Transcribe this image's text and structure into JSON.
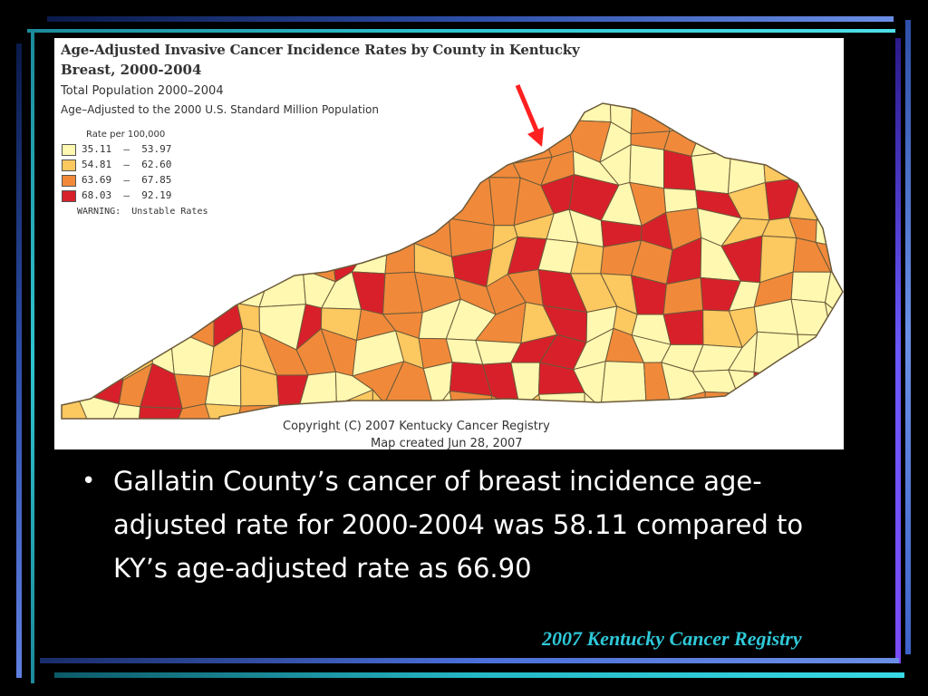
{
  "map": {
    "title": "Age-Adjusted Invasive Cancer Incidence Rates by County in Kentucky",
    "subtitle": "Breast, 2000-2004",
    "population_line": "Total Population 2000–2004",
    "adjusted_line": "Age–Adjusted to the 2000 U.S. Standard Million Population",
    "legend": {
      "title": "Rate per 100,000",
      "items": [
        {
          "label": "35.11  –  53.97",
          "color": "#fff8b0"
        },
        {
          "label": "54.81  –  62.60",
          "color": "#fcc860"
        },
        {
          "label": "63.69  –  67.85",
          "color": "#f08a3a"
        },
        {
          "label": "68.03  –  92.19",
          "color": "#d8202a"
        }
      ],
      "warning": "WARNING:  Unstable Rates"
    },
    "copyright": "Copyright (C) 2007 Kentucky Cancer Registry",
    "created": "Map created Jun 28, 2007",
    "highlight_arrow_color": "#ff2020",
    "highlighted_county": "Gallatin"
  },
  "bullet": {
    "text": "Gallatin County’s cancer of breast incidence age-adjusted rate for 2000-2004 was 58.11 compared to KY’s age-adjusted rate as 66.90"
  },
  "footer": {
    "text": "2007 Kentucky Cancer Registry",
    "color": "#2ec8d8"
  },
  "colors": {
    "background": "#000000",
    "bullet_text": "#ffffff"
  }
}
